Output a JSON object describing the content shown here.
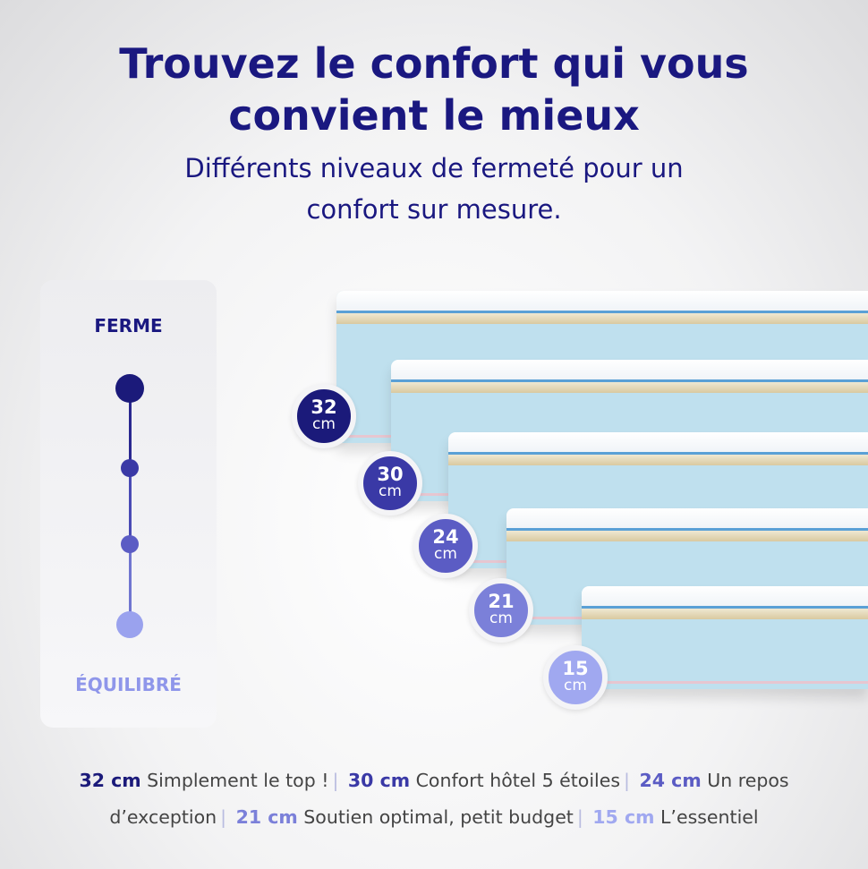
{
  "header": {
    "title_line1": "Trouvez le confort qui vous",
    "title_line2": "convient le mieux",
    "subtitle_line1": "Différents niveaux de fermeté pour un",
    "subtitle_line2": "confort sur mesure."
  },
  "firmness": {
    "top_label": "FERME",
    "bottom_label": "ÉQUILIBRÉ",
    "top_color": "#1a1880",
    "bottom_color": "#8f96ea"
  },
  "mattresses": [
    {
      "height": "32",
      "unit": "cm",
      "color": "#1b1a7a",
      "tagline": "Simplement le top !"
    },
    {
      "height": "30",
      "unit": "cm",
      "color": "#3a39a6",
      "tagline": "Confort hôtel 5 étoiles"
    },
    {
      "height": "24",
      "unit": "cm",
      "color": "#5b5cc4",
      "tagline": "Un repos d’exception"
    },
    {
      "height": "21",
      "unit": "cm",
      "color": "#7b80d9",
      "tagline": "Soutien optimal, petit budget"
    },
    {
      "height": "15",
      "unit": "cm",
      "color": "#a0a8f0",
      "tagline": "L’essentiel"
    }
  ]
}
